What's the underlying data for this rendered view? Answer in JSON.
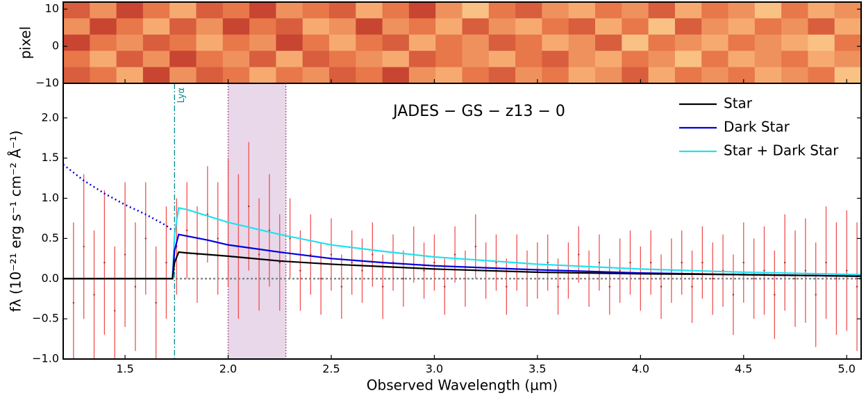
{
  "chart_data": [
    {
      "type": "heatmap",
      "ylabel": "pixel",
      "xlim": [
        1.2,
        5.07
      ],
      "ylim": [
        -10,
        11.9
      ],
      "yticks": [
        {
          "value": -10,
          "label": "−10"
        },
        0,
        10
      ],
      "colormap": [
        "#7a0f2b",
        "#c0392b",
        "#e8774a",
        "#f9b77a",
        "#fde8b0"
      ],
      "values": [
        [
          0.4,
          0.6,
          0.3,
          0.5,
          0.7,
          0.4,
          0.5,
          0.3,
          0.6,
          0.5,
          0.4,
          0.7,
          0.5,
          0.3,
          0.6,
          0.8,
          0.5,
          0.4,
          0.6,
          0.7,
          0.5,
          0.6,
          0.4,
          0.7,
          0.5,
          0.6,
          0.8,
          0.5,
          0.7,
          0.6
        ],
        [
          0.6,
          0.3,
          0.5,
          0.7,
          0.4,
          0.6,
          0.3,
          0.5,
          0.4,
          0.7,
          0.6,
          0.3,
          0.6,
          0.5,
          0.7,
          0.4,
          0.6,
          0.7,
          0.5,
          0.4,
          0.7,
          0.5,
          0.8,
          0.4,
          0.6,
          0.7,
          0.5,
          0.6,
          0.4,
          0.7
        ],
        [
          0.3,
          0.5,
          0.6,
          0.4,
          0.5,
          0.7,
          0.5,
          0.6,
          0.3,
          0.5,
          0.7,
          0.5,
          0.4,
          0.7,
          0.5,
          0.6,
          0.4,
          0.5,
          0.7,
          0.6,
          0.4,
          0.8,
          0.5,
          0.6,
          0.7,
          0.5,
          0.6,
          0.7,
          0.8,
          0.5
        ],
        [
          0.5,
          0.7,
          0.4,
          0.6,
          0.3,
          0.5,
          0.6,
          0.4,
          0.7,
          0.4,
          0.5,
          0.6,
          0.7,
          0.4,
          0.5,
          0.6,
          0.7,
          0.5,
          0.4,
          0.6,
          0.7,
          0.5,
          0.6,
          0.8,
          0.5,
          0.7,
          0.6,
          0.5,
          0.7,
          0.6
        ],
        [
          0.4,
          0.5,
          0.7,
          0.3,
          0.6,
          0.4,
          0.5,
          0.7,
          0.5,
          0.6,
          0.4,
          0.5,
          0.3,
          0.6,
          0.7,
          0.5,
          0.4,
          0.6,
          0.5,
          0.7,
          0.6,
          0.4,
          0.7,
          0.5,
          0.6,
          0.5,
          0.7,
          0.6,
          0.5,
          0.8
        ]
      ]
    },
    {
      "type": "line",
      "title": "JADES − GS − z13 − 0",
      "xlabel": "Observed Wavelength (µm)",
      "ylabel": "fλ (10⁻²¹ erg s⁻¹ cm⁻² Å⁻¹)",
      "xlim": [
        1.2,
        5.07
      ],
      "ylim": [
        -1.0,
        2.43
      ],
      "xticks": [
        1.5,
        {
          "value": 2,
          "label": "2.0"
        },
        2.5,
        {
          "value": 3,
          "label": "3.0"
        },
        3.5,
        {
          "value": 4,
          "label": "4.0"
        },
        4.5,
        {
          "value": 5,
          "label": "5.0"
        }
      ],
      "yticks": [
        {
          "value": -1,
          "label": "−1.0"
        },
        {
          "value": -0.5,
          "label": "−0.5"
        },
        {
          "value": 0,
          "label": "0.0"
        },
        0.5,
        {
          "value": 1,
          "label": "1.0"
        },
        1.5,
        {
          "value": 2,
          "label": "2.0"
        }
      ],
      "legend": "upper right",
      "lya": {
        "x": 1.74,
        "label": "Lyα",
        "color": "#008b8b"
      },
      "band": {
        "range": [
          2.0,
          2.28
        ],
        "color": "#e8d8ea",
        "edge": "#8b1a6b"
      },
      "data": {
        "color": "#f05050",
        "x": [
          1.2,
          1.25,
          1.3,
          1.35,
          1.4,
          1.45,
          1.5,
          1.55,
          1.6,
          1.65,
          1.7,
          1.75,
          1.8,
          1.85,
          1.9,
          1.95,
          2.0,
          2.05,
          2.1,
          2.15,
          2.2,
          2.25,
          2.3,
          2.35,
          2.4,
          2.45,
          2.5,
          2.55,
          2.6,
          2.65,
          2.7,
          2.75,
          2.8,
          2.85,
          2.9,
          2.95,
          3.0,
          3.05,
          3.1,
          3.15,
          3.2,
          3.25,
          3.3,
          3.35,
          3.4,
          3.45,
          3.5,
          3.55,
          3.6,
          3.65,
          3.7,
          3.75,
          3.8,
          3.85,
          3.9,
          3.95,
          4.0,
          4.05,
          4.1,
          4.15,
          4.2,
          4.25,
          4.3,
          4.35,
          4.4,
          4.45,
          4.5,
          4.55,
          4.6,
          4.65,
          4.7,
          4.75,
          4.8,
          4.85,
          4.9,
          4.95,
          5.0,
          5.05
        ],
        "values": [
          0.1,
          -0.3,
          0.4,
          -0.2,
          0.2,
          -0.4,
          0.3,
          -0.1,
          0.5,
          -0.3,
          0.2,
          0.4,
          0.6,
          0.3,
          0.8,
          0.5,
          0.7,
          0.4,
          0.9,
          0.3,
          0.6,
          0.2,
          0.5,
          0.1,
          0.3,
          0.0,
          0.3,
          -0.1,
          0.2,
          0.1,
          0.3,
          -0.1,
          0.2,
          0.0,
          0.3,
          0.1,
          0.2,
          -0.1,
          0.3,
          0.0,
          0.4,
          0.1,
          0.2,
          -0.1,
          0.2,
          0.0,
          0.1,
          0.2,
          -0.1,
          0.1,
          0.3,
          0.0,
          0.2,
          -0.1,
          0.1,
          0.2,
          0.0,
          0.2,
          -0.1,
          0.1,
          0.2,
          -0.1,
          0.2,
          0.0,
          0.1,
          -0.2,
          0.2,
          0.0,
          0.1,
          -0.2,
          0.2,
          0.0,
          0.1,
          -0.2,
          0.2,
          0.0,
          0.1,
          -0.1
        ],
        "errors": [
          0.9,
          1.0,
          0.9,
          0.8,
          0.9,
          0.8,
          0.9,
          0.8,
          0.7,
          0.7,
          0.7,
          0.6,
          0.6,
          0.6,
          0.6,
          0.7,
          0.8,
          0.9,
          0.8,
          0.7,
          0.7,
          0.6,
          0.5,
          0.5,
          0.5,
          0.45,
          0.45,
          0.4,
          0.4,
          0.4,
          0.4,
          0.4,
          0.35,
          0.35,
          0.35,
          0.35,
          0.35,
          0.35,
          0.35,
          0.35,
          0.4,
          0.35,
          0.35,
          0.35,
          0.35,
          0.35,
          0.35,
          0.35,
          0.35,
          0.35,
          0.35,
          0.35,
          0.35,
          0.35,
          0.4,
          0.4,
          0.4,
          0.4,
          0.4,
          0.4,
          0.4,
          0.45,
          0.45,
          0.45,
          0.45,
          0.5,
          0.5,
          0.5,
          0.55,
          0.55,
          0.6,
          0.6,
          0.65,
          0.65,
          0.7,
          0.7,
          0.75,
          0.8
        ]
      },
      "series": [
        {
          "name": "Star",
          "color": "#000000",
          "x": [
            1.2,
            1.73,
            1.74,
            1.76,
            1.8,
            1.9,
            2.0,
            2.25,
            2.5,
            2.75,
            3.0,
            3.5,
            4.0,
            4.5,
            5.07
          ],
          "values": [
            0,
            0,
            0.2,
            0.33,
            0.32,
            0.3,
            0.28,
            0.22,
            0.18,
            0.15,
            0.12,
            0.08,
            0.06,
            0.05,
            0.03
          ]
        },
        {
          "name": "Dark Star",
          "color": "#0000dd",
          "x": [
            1.2,
            1.73,
            1.74,
            1.76,
            1.8,
            1.9,
            2.0,
            2.25,
            2.5,
            2.75,
            3.0,
            3.5,
            4.0,
            4.5,
            5.07
          ],
          "values": [
            0,
            0,
            0.35,
            0.55,
            0.53,
            0.48,
            0.42,
            0.33,
            0.25,
            0.2,
            0.16,
            0.11,
            0.07,
            0.05,
            0.03
          ],
          "extrapolation": {
            "x": [
              1.2,
              1.3,
              1.4,
              1.5,
              1.6,
              1.7,
              1.73
            ],
            "values": [
              1.42,
              1.22,
              1.06,
              0.92,
              0.8,
              0.66,
              0.6
            ]
          }
        },
        {
          "name": "Star + Dark Star",
          "color": "#22e0f0",
          "x": [
            1.2,
            1.73,
            1.74,
            1.76,
            1.8,
            1.9,
            2.0,
            2.25,
            2.5,
            2.75,
            3.0,
            3.5,
            4.0,
            4.5,
            5.07
          ],
          "values": [
            0,
            0,
            0.55,
            0.88,
            0.86,
            0.78,
            0.7,
            0.55,
            0.42,
            0.34,
            0.27,
            0.18,
            0.12,
            0.08,
            0.05
          ]
        }
      ]
    }
  ]
}
